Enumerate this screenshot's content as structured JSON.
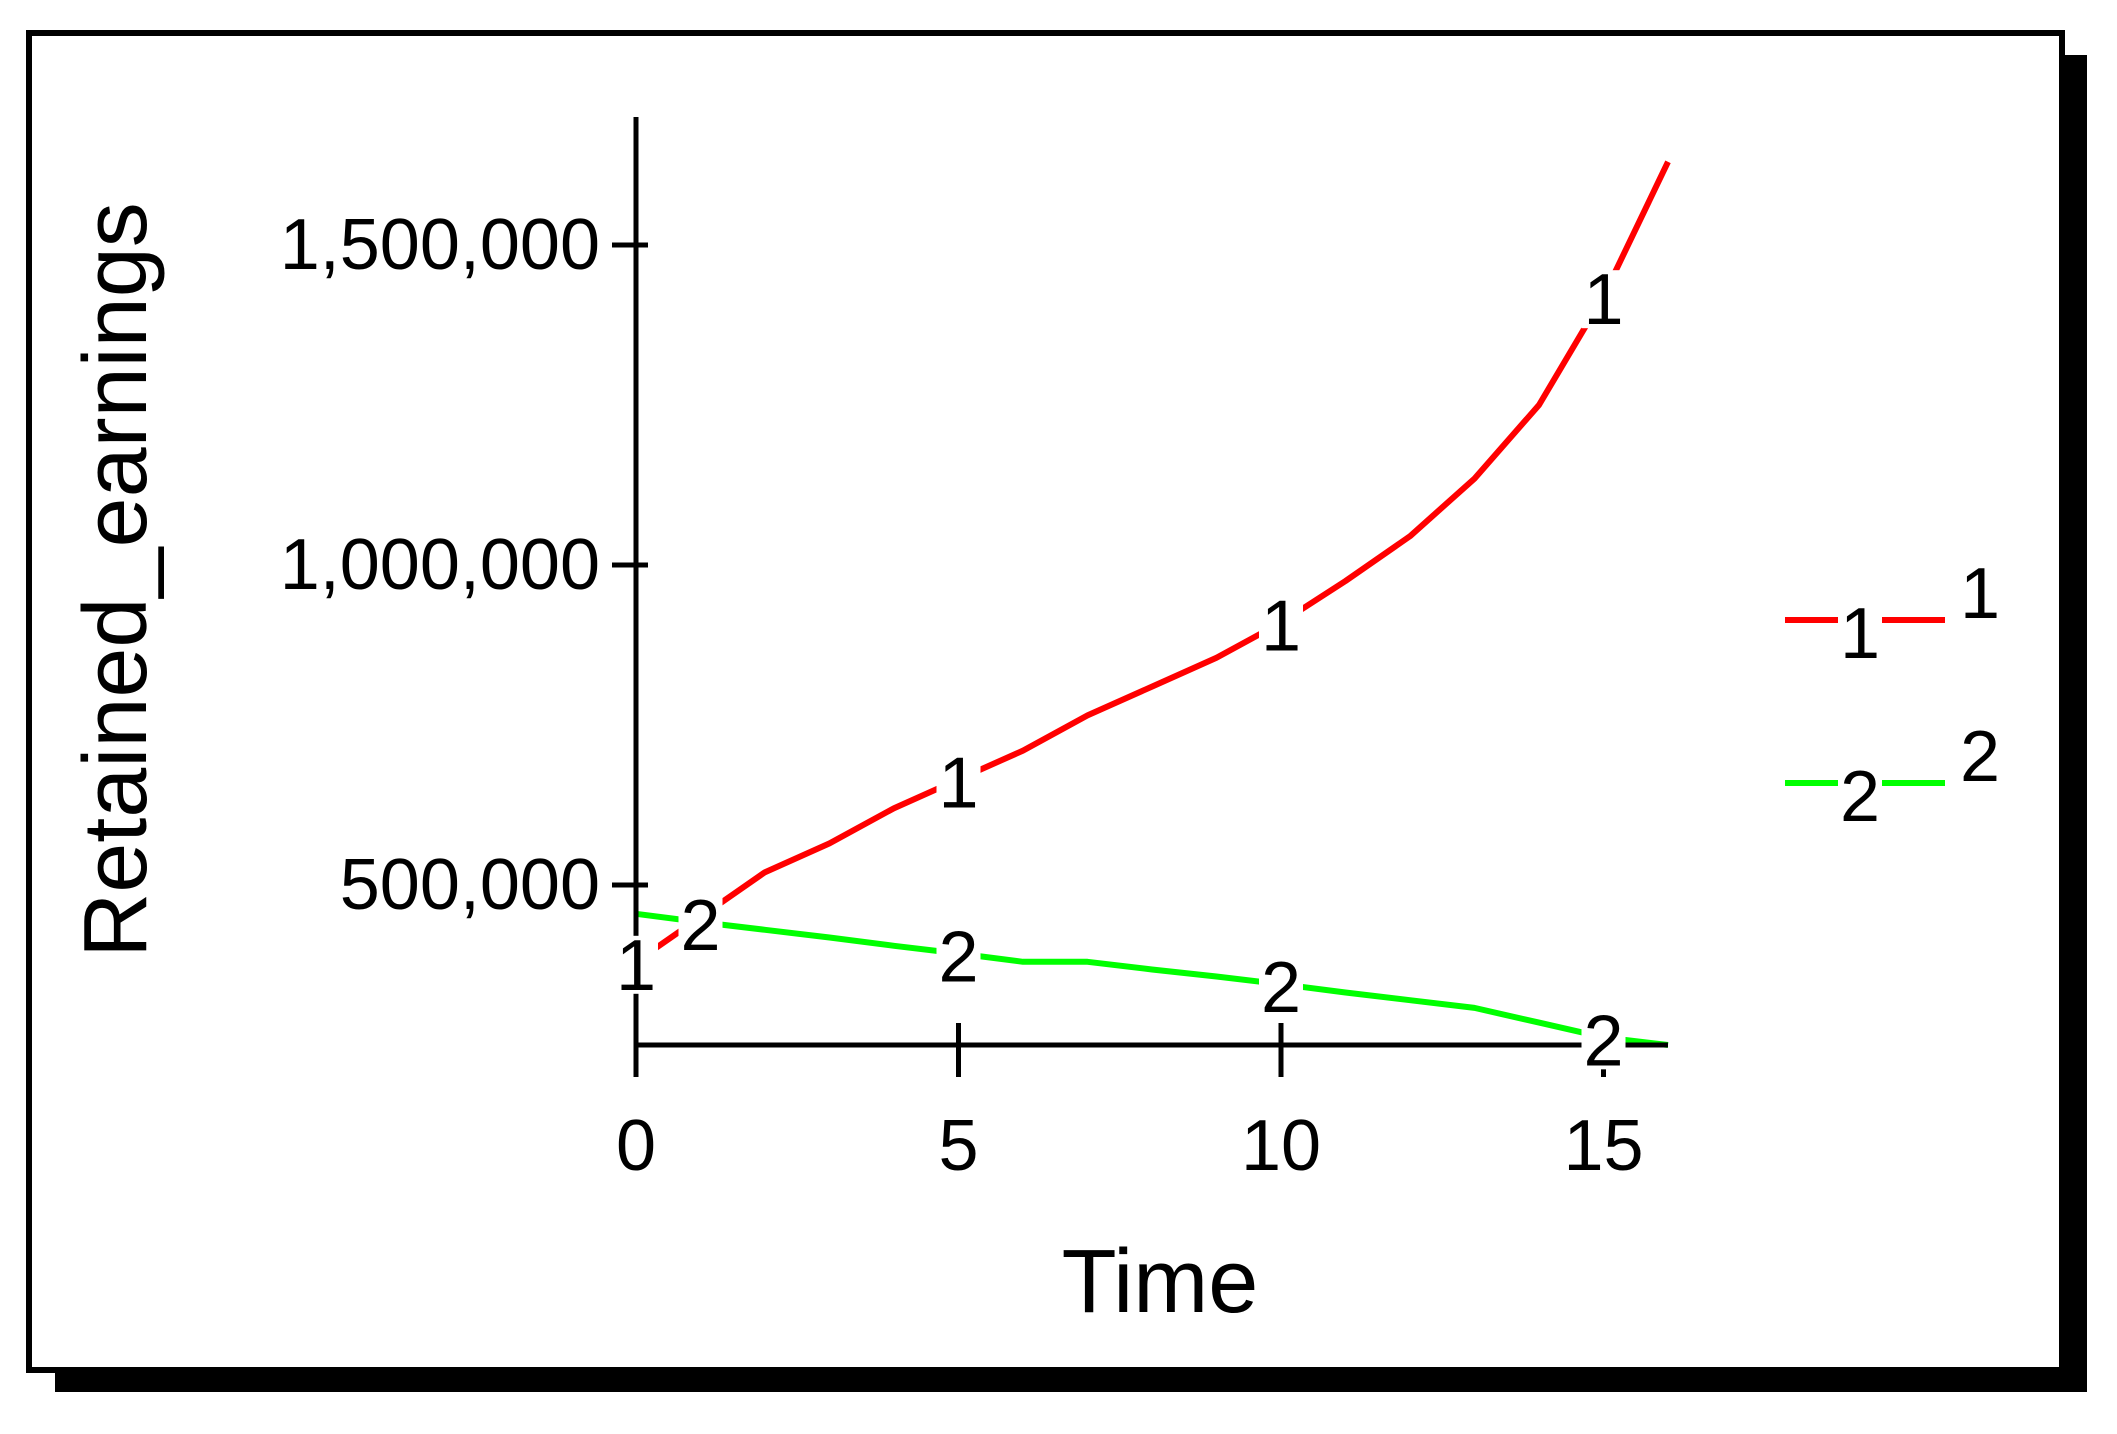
{
  "chart_data": {
    "type": "line",
    "xlabel": "Time",
    "ylabel": "Retained_earnings",
    "xlim": [
      0,
      16
    ],
    "ylim": [
      250000,
      1700000
    ],
    "xticks": [
      0,
      5,
      10,
      15
    ],
    "xtick_labels": [
      "0",
      "5",
      "10",
      "15"
    ],
    "yticks": [
      500000,
      1000000,
      1500000
    ],
    "ytick_labels": [
      "500,000",
      "1,000,000",
      "1,500,000"
    ],
    "grid": false,
    "legend_position": "right",
    "series": [
      {
        "name": "1",
        "marker": "1",
        "color": "#ff0000",
        "x": [
          0,
          1,
          2,
          3,
          4,
          5,
          6,
          7,
          8,
          9,
          10,
          11,
          12,
          13,
          14,
          15,
          16
        ],
        "values": [
          380000,
          450000,
          520000,
          565000,
          620000,
          665000,
          710000,
          765000,
          810000,
          855000,
          910000,
          975000,
          1045000,
          1135000,
          1250000,
          1420000,
          1630000
        ],
        "marker_x": [
          0,
          5,
          10,
          15
        ]
      },
      {
        "name": "2",
        "marker": "2",
        "color": "#00ff00",
        "x": [
          0,
          1,
          2,
          3,
          4,
          5,
          6,
          7,
          8,
          9,
          10,
          11,
          12,
          13,
          14,
          15,
          16
        ],
        "values": [
          455000,
          442000,
          430000,
          418000,
          405000,
          393000,
          380000,
          380000,
          368000,
          357000,
          345000,
          332000,
          320000,
          308000,
          285000,
          262000,
          250000
        ],
        "marker_x": [
          1,
          5,
          10,
          15
        ]
      }
    ]
  }
}
